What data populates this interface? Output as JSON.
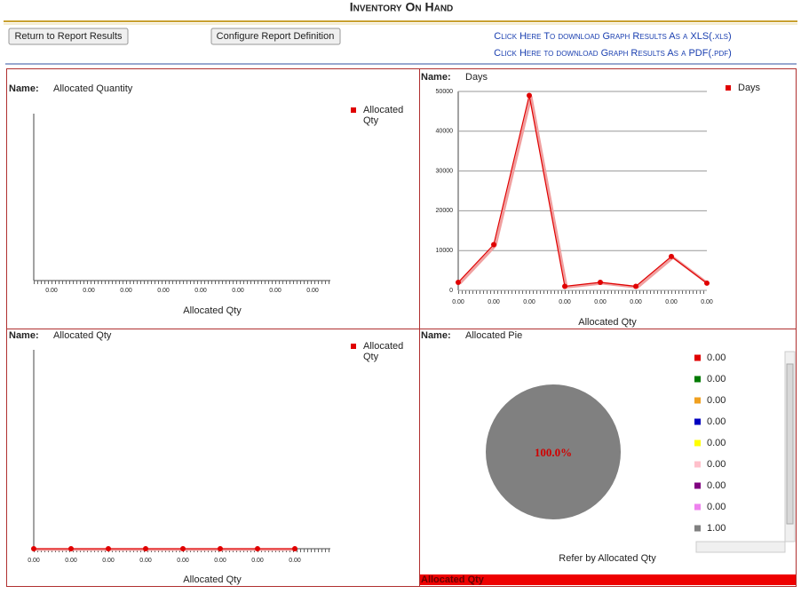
{
  "header": {
    "title": "Inventory On Hand"
  },
  "buttons": [
    "Return to Report Results",
    "Configure Report Definition"
  ],
  "links": [
    "Click Here To download Graph Results As a XLS(.xls)",
    "Click Here to download Graph Results As a PDF(.pdf)"
  ],
  "chart_data": [
    {
      "type": "bar",
      "name_prefix": "Name:",
      "name": "Allocated Quantity",
      "categories": [
        "0.00",
        "0.00",
        "0.00",
        "0.00",
        "0.00",
        "0.00",
        "0.00",
        "0.00"
      ],
      "series": [
        {
          "name": "Allocated Qty",
          "color": "#e00000",
          "values": [
            0,
            0,
            0,
            0,
            0,
            0,
            0,
            0
          ]
        }
      ],
      "xlabel": "Allocated Qty",
      "legend": "top-right"
    },
    {
      "type": "line",
      "name_prefix": "Name:",
      "name": "Days",
      "categories": [
        "0.00",
        "0.00",
        "0.00",
        "0.00",
        "0.00",
        "0.00",
        "0.00",
        "0.00"
      ],
      "series": [
        {
          "name": "Days",
          "color": "#e00000",
          "values": [
            2000,
            11500,
            49000,
            1000,
            2000,
            1000,
            8500,
            1800
          ]
        }
      ],
      "xlabel": "Allocated Qty",
      "ylim": [
        0,
        50000
      ],
      "yticks": [
        0,
        10000,
        20000,
        30000,
        40000,
        50000
      ],
      "grid": true,
      "legend": "top-right"
    },
    {
      "type": "line",
      "name_prefix": "Name:",
      "name": "Allocated Qty",
      "categories": [
        "0.00",
        "0.00",
        "0.00",
        "0.00",
        "0.00",
        "0.00",
        "0.00",
        "0.00"
      ],
      "series": [
        {
          "name": "Allocated Qty",
          "color": "#e00000",
          "values": [
            0,
            0,
            0,
            0,
            0,
            0,
            0,
            0
          ]
        }
      ],
      "xlabel": "Allocated Qty",
      "legend": "top-right"
    },
    {
      "type": "pie",
      "name_prefix": "Name:",
      "name": "Allocated Pie",
      "categories": [
        "0.00",
        "0.00",
        "0.00",
        "0.00",
        "0.00",
        "0.00",
        "0.00",
        "0.00",
        "1.00"
      ],
      "values": [
        0,
        0,
        0,
        0,
        0,
        0,
        0,
        0,
        1
      ],
      "colors": [
        "#e00000",
        "#007a00",
        "#f0a020",
        "#0000c0",
        "#ffff00",
        "#ffc0cb",
        "#800080",
        "#ee82ee",
        "#808080"
      ],
      "center_label": "100.0%",
      "footer": "Refer by Allocated Qty",
      "bottom_bar": "Allocated Qty",
      "legend": "right"
    }
  ]
}
